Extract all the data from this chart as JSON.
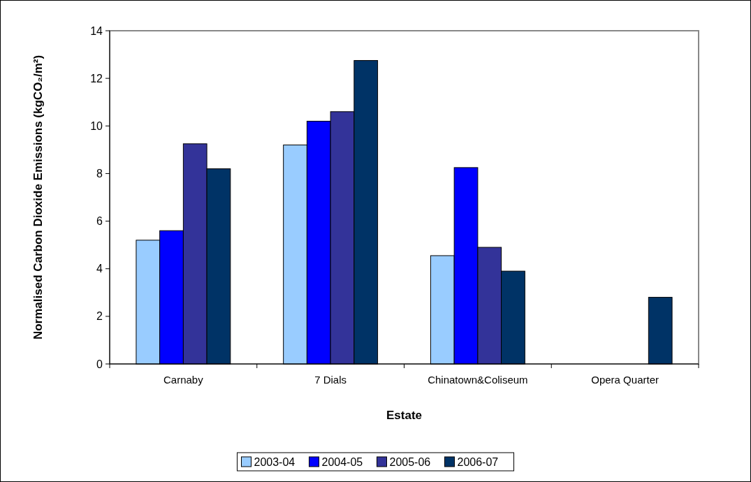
{
  "chart_data": {
    "type": "bar",
    "xlabel": "Estate",
    "ylabel": "Normalised Carbon Dioxide Emissions (kgCO₂/m²)",
    "categories": [
      "Carnaby",
      "7 Dials",
      "Chinatown&Coliseum",
      "Opera Quarter"
    ],
    "series": [
      {
        "name": "2003-04",
        "color": "#99ccff",
        "values": [
          5.2,
          9.2,
          4.55,
          null
        ]
      },
      {
        "name": "2004-05",
        "color": "#0000ff",
        "values": [
          5.6,
          10.2,
          8.25,
          null
        ]
      },
      {
        "name": "2005-06",
        "color": "#333399",
        "values": [
          9.25,
          10.6,
          4.9,
          null
        ]
      },
      {
        "name": "2006-07",
        "color": "#003366",
        "values": [
          8.2,
          12.75,
          3.9,
          2.8
        ]
      }
    ],
    "ylim": [
      0,
      14
    ],
    "yticks": [
      0,
      2,
      4,
      6,
      8,
      10,
      12,
      14
    ],
    "grid": false,
    "legend": "bottom"
  }
}
